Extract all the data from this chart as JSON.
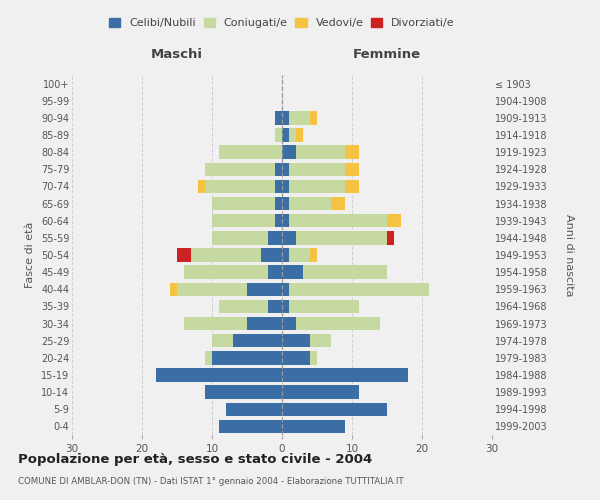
{
  "age_groups": [
    "0-4",
    "5-9",
    "10-14",
    "15-19",
    "20-24",
    "25-29",
    "30-34",
    "35-39",
    "40-44",
    "45-49",
    "50-54",
    "55-59",
    "60-64",
    "65-69",
    "70-74",
    "75-79",
    "80-84",
    "85-89",
    "90-94",
    "95-99",
    "100+"
  ],
  "birth_years": [
    "1999-2003",
    "1994-1998",
    "1989-1993",
    "1984-1988",
    "1979-1983",
    "1974-1978",
    "1969-1973",
    "1964-1968",
    "1959-1963",
    "1954-1958",
    "1949-1953",
    "1944-1948",
    "1939-1943",
    "1934-1938",
    "1929-1933",
    "1924-1928",
    "1919-1923",
    "1914-1918",
    "1909-1913",
    "1904-1908",
    "≤ 1903"
  ],
  "male": {
    "celibi": [
      9,
      8,
      11,
      18,
      10,
      7,
      5,
      2,
      5,
      2,
      3,
      2,
      1,
      1,
      1,
      1,
      0,
      0,
      1,
      0,
      0
    ],
    "coniugati": [
      0,
      0,
      0,
      0,
      1,
      3,
      9,
      7,
      10,
      12,
      10,
      8,
      9,
      9,
      10,
      10,
      9,
      1,
      0,
      0,
      0
    ],
    "vedovi": [
      0,
      0,
      0,
      0,
      0,
      0,
      0,
      0,
      1,
      0,
      0,
      0,
      0,
      0,
      1,
      0,
      0,
      0,
      0,
      0,
      0
    ],
    "divorziati": [
      0,
      0,
      0,
      0,
      0,
      0,
      0,
      0,
      0,
      0,
      2,
      0,
      0,
      0,
      0,
      0,
      0,
      0,
      0,
      0,
      0
    ]
  },
  "female": {
    "nubili": [
      9,
      15,
      11,
      18,
      4,
      4,
      2,
      1,
      1,
      3,
      1,
      2,
      1,
      1,
      1,
      1,
      2,
      1,
      1,
      0,
      0
    ],
    "coniugate": [
      0,
      0,
      0,
      0,
      1,
      3,
      12,
      10,
      20,
      12,
      3,
      13,
      14,
      6,
      8,
      8,
      7,
      1,
      3,
      0,
      0
    ],
    "vedove": [
      0,
      0,
      0,
      0,
      0,
      0,
      0,
      0,
      0,
      0,
      1,
      0,
      2,
      2,
      2,
      2,
      2,
      1,
      1,
      0,
      0
    ],
    "divorziate": [
      0,
      0,
      0,
      0,
      0,
      0,
      0,
      0,
      0,
      0,
      0,
      1,
      0,
      0,
      0,
      0,
      0,
      0,
      0,
      0,
      0
    ]
  },
  "colors": {
    "celibi": "#3a6ea5",
    "coniugati": "#c5d9a0",
    "vedovi": "#f5c242",
    "divorziati": "#cc2222"
  },
  "title": "Popolazione per età, sesso e stato civile - 2004",
  "subtitle": "COMUNE DI AMBLAR-DON (TN) - Dati ISTAT 1° gennaio 2004 - Elaborazione TUTTITALIA.IT",
  "xlabel_left": "Maschi",
  "xlabel_right": "Femmine",
  "ylabel_left": "Fasce di età",
  "ylabel_right": "Anni di nascita",
  "xlim": 30,
  "legend_labels": [
    "Celibi/Nubili",
    "Coniugati/e",
    "Vedovi/e",
    "Divorziati/e"
  ],
  "background_color": "#f0f0f0"
}
